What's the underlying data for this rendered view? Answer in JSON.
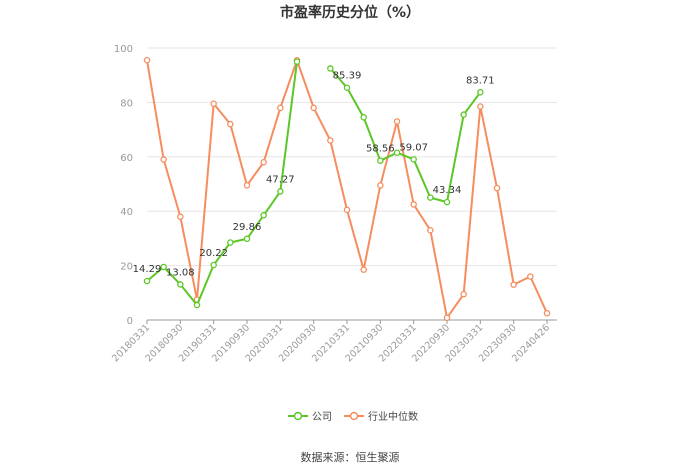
{
  "chart_data": {
    "type": "line",
    "title": "市盈率历史分位（%）",
    "ylim": [
      0,
      100
    ],
    "yticks": [
      0,
      20,
      40,
      60,
      80,
      100
    ],
    "x_tick_labels": [
      "20180331",
      "20180930",
      "20190331",
      "20190930",
      "20200331",
      "20200930",
      "20210331",
      "20210930",
      "20220331",
      "20220930",
      "20230331",
      "20230930",
      "20240426"
    ],
    "x": [
      "20180331",
      "20180630",
      "20180930",
      "20181231",
      "20190331",
      "20190630",
      "20190930",
      "20191231",
      "20200331",
      "20200630",
      "20200930",
      "20201231",
      "20210331",
      "20210630",
      "20210930",
      "20211231",
      "20220331",
      "20220630",
      "20220930",
      "20221231",
      "20230331",
      "20230630",
      "20230930",
      "20231231",
      "20240426"
    ],
    "series": [
      {
        "name": "公司",
        "color": "#5cc726",
        "values": [
          14.29,
          19.5,
          13.08,
          5.5,
          20.22,
          28.5,
          29.86,
          38.5,
          47.27,
          95,
          null,
          92.5,
          85.39,
          74.5,
          58.56,
          61.5,
          59.07,
          45,
          43.34,
          75.5,
          83.71,
          null,
          null,
          null,
          null
        ]
      },
      {
        "name": "行业中位数",
        "color": "#f58d5e",
        "values": [
          95.5,
          59,
          38,
          7.5,
          79.5,
          72,
          49.5,
          58,
          78,
          95.5,
          78,
          66,
          40.5,
          18.5,
          49.5,
          73,
          42.5,
          33,
          0.8,
          9.5,
          78.5,
          48.5,
          13,
          16,
          2.5
        ]
      }
    ],
    "data_labels": [
      {
        "series": 0,
        "index": 0,
        "text": "14.29"
      },
      {
        "series": 0,
        "index": 2,
        "text": "13.08"
      },
      {
        "series": 0,
        "index": 4,
        "text": "20.22"
      },
      {
        "series": 0,
        "index": 6,
        "text": "29.86"
      },
      {
        "series": 0,
        "index": 8,
        "text": "47.27"
      },
      {
        "series": 0,
        "index": 12,
        "text": "85.39"
      },
      {
        "series": 0,
        "index": 14,
        "text": "58.56"
      },
      {
        "series": 0,
        "index": 16,
        "text": "59.07"
      },
      {
        "series": 0,
        "index": 18,
        "text": "43.34"
      },
      {
        "series": 0,
        "index": 20,
        "text": "83.71"
      }
    ],
    "grid": true,
    "legend_position": "bottom-center"
  },
  "footer": {
    "source": "数据来源：恒生聚源"
  }
}
